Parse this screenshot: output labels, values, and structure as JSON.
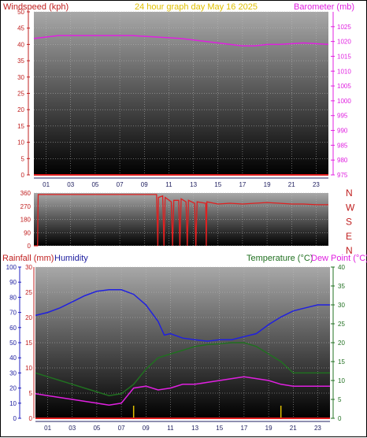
{
  "chart_data": [
    {
      "type": "line",
      "title": "24 hour graph day   May 16 2025",
      "ylabel_left": "Windspeed (kph)",
      "ylabel_right": "Barometer (mb)",
      "x_ticks": [
        "01",
        "03",
        "05",
        "07",
        "09",
        "11",
        "13",
        "15",
        "17",
        "19",
        "21",
        "23"
      ],
      "xlim": [
        0,
        24
      ],
      "ylim_left": [
        0,
        50
      ],
      "ylim_right": [
        975,
        1030
      ],
      "yticks_left": [
        0,
        5,
        10,
        15,
        20,
        25,
        30,
        35,
        40,
        45,
        50
      ],
      "yticks_right": [
        975,
        980,
        985,
        990,
        995,
        1000,
        1005,
        1010,
        1015,
        1020,
        1025
      ],
      "series": [
        {
          "axis": "right",
          "color": "#e020e0",
          "x": [
            0,
            2,
            4,
            6,
            8,
            10,
            12,
            14,
            16,
            17,
            18,
            19,
            20,
            22,
            24
          ],
          "values": [
            1021,
            1022,
            1022,
            1022,
            1022,
            1021.5,
            1021,
            1020,
            1019,
            1018.5,
            1018.5,
            1019,
            1019,
            1019.5,
            1019
          ]
        },
        {
          "axis": "left",
          "color": "#e02020",
          "x": [
            0,
            24
          ],
          "values": [
            0,
            0
          ]
        }
      ]
    },
    {
      "type": "line",
      "ylabel_left": "",
      "yticks_left": [
        0,
        90,
        180,
        270,
        360
      ],
      "direction_labels": [
        "N",
        "W",
        "S",
        "E",
        "N"
      ],
      "xlim": [
        0,
        24
      ],
      "ylim_left": [
        0,
        360
      ],
      "series": [
        {
          "color": "#e02020",
          "x": [
            0,
            0.3,
            0.35,
            10,
            10.1,
            10.15,
            10.5,
            10.6,
            10.7,
            11.2,
            11.3,
            11.4,
            11.8,
            11.9,
            12,
            12.4,
            12.5,
            12.6,
            13.1,
            13.2,
            13.3,
            14,
            14.05,
            14.1,
            15,
            16,
            17,
            18,
            19,
            20,
            21,
            22,
            23,
            24
          ],
          "values": [
            0,
            0,
            350,
            350,
            0,
            330,
            340,
            0,
            330,
            300,
            0,
            310,
            310,
            0,
            320,
            300,
            0,
            310,
            290,
            0,
            300,
            290,
            0,
            300,
            285,
            290,
            285,
            290,
            295,
            290,
            285,
            285,
            280,
            280
          ]
        }
      ]
    },
    {
      "type": "line",
      "ylabel_left": "Rainfall (mm)",
      "ylabel_left2": "Humidity",
      "ylabel_right": "Temperature (°C)",
      "ylabel_right2": "Dew Point (°C)",
      "x_ticks": [
        "01",
        "03",
        "05",
        "07",
        "09",
        "11",
        "13",
        "15",
        "17",
        "19",
        "21",
        "23"
      ],
      "xlim": [
        0,
        24
      ],
      "ylim_humidity": [
        0,
        100
      ],
      "ylim_rain": [
        0,
        30
      ],
      "ylim_temp": [
        0,
        40
      ],
      "yticks_humidity": [
        0,
        10,
        20,
        30,
        40,
        50,
        60,
        70,
        80,
        90,
        100
      ],
      "yticks_rain": [
        0,
        5,
        10,
        15,
        20,
        25,
        30
      ],
      "yticks_temp": [
        0,
        5,
        10,
        15,
        20,
        25,
        30,
        35,
        40
      ],
      "series": [
        {
          "name": "Humidity",
          "axis": "humidity",
          "color": "#2020e0",
          "x": [
            0,
            1,
            2,
            3,
            4,
            5,
            6,
            7,
            8,
            9,
            10,
            10.5,
            11,
            12,
            13,
            14,
            15,
            16,
            17,
            18,
            19,
            20,
            21,
            22,
            23,
            24
          ],
          "values": [
            68,
            70,
            73,
            77,
            81,
            84,
            85,
            85,
            82,
            75,
            64,
            55,
            56,
            53,
            52,
            51,
            52,
            52,
            54,
            56,
            62,
            67,
            71,
            73,
            75,
            75
          ]
        },
        {
          "name": "Temperature",
          "axis": "temp",
          "color": "#207020",
          "x": [
            0,
            1,
            2,
            3,
            4,
            5,
            6,
            7,
            8,
            9,
            10,
            11,
            12,
            13,
            14,
            15,
            16,
            17,
            18,
            19,
            20,
            21,
            22,
            23,
            24
          ],
          "values": [
            12,
            11,
            10,
            9,
            8,
            7,
            6,
            6.5,
            9,
            13,
            16,
            17,
            18,
            19,
            19.5,
            19.7,
            20,
            20,
            19,
            17,
            15,
            12,
            12,
            12,
            12
          ]
        },
        {
          "name": "Dew Point",
          "axis": "temp",
          "color": "#e020e0",
          "x": [
            0,
            1,
            2,
            3,
            4,
            5,
            6,
            7,
            8,
            9,
            10,
            11,
            12,
            13,
            14,
            15,
            16,
            17,
            18,
            19,
            20,
            21,
            22,
            23,
            24
          ],
          "values": [
            6.5,
            6,
            5.5,
            5,
            4.5,
            4,
            3.5,
            4,
            8,
            8.5,
            7.5,
            8,
            9,
            9,
            9.5,
            10,
            10.5,
            11,
            10.5,
            10,
            9,
            8.5,
            8.5,
            8.5,
            8.5
          ]
        },
        {
          "name": "Rainfall",
          "axis": "rain",
          "color": "#e02020",
          "x": [
            0,
            24
          ],
          "values": [
            0,
            0
          ]
        }
      ],
      "markers": [
        {
          "x": 8,
          "color": "#e0c000"
        },
        {
          "x": 20,
          "color": "#e0c000"
        }
      ]
    }
  ]
}
